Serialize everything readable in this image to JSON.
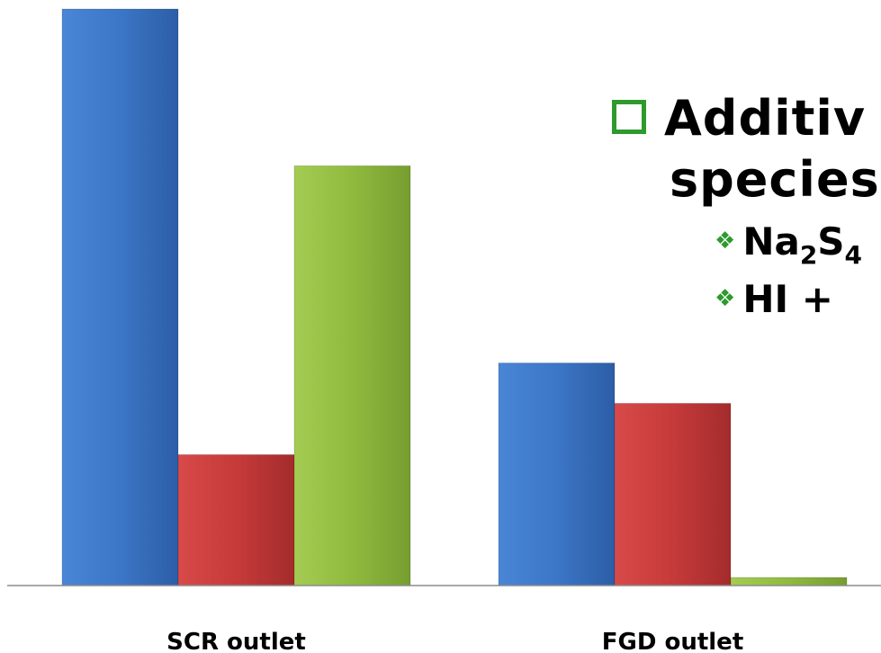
{
  "chart_data": {
    "type": "bar",
    "categories": [
      "SCR outlet",
      "FGD outlet"
    ],
    "series": [
      {
        "values": [
          100,
          38.6
        ],
        "color": "#3c76c6"
      },
      {
        "values": [
          22.7,
          31.6
        ],
        "color": "#c63a3a"
      },
      {
        "values": [
          72.8,
          1.4
        ],
        "color": "#8fba3e"
      }
    ],
    "ylim": [
      0,
      100
    ],
    "title": "",
    "xlabel": "",
    "ylabel": ""
  },
  "text": {
    "title_line1": "Additiv",
    "title_line2": "species",
    "bullet1_main": "Na",
    "bullet1_sub1": "2",
    "bullet1_mid": "S",
    "bullet1_sub2": "4",
    "bullet2": "HI  +"
  },
  "icons": {
    "title_bullet": "checkbox-square-icon",
    "list_bullet": "diamond-cluster-icon"
  },
  "colors": {
    "accent_green": "#2e9a2e"
  }
}
